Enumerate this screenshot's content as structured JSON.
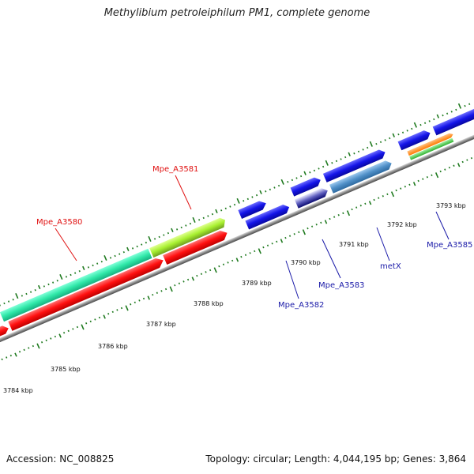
{
  "title": "Methylibium petroleiphilum PM1, complete genome",
  "accession": "Accession: NC_008825",
  "summary": "Topology: circular; Length: 4,044,195 bp; Genes: 3,864",
  "kbp_labels": [
    "3784 kbp",
    "3785 kbp",
    "3786 kbp",
    "3787 kbp",
    "3788 kbp",
    "3789 kbp",
    "3790 kbp",
    "3791 kbp",
    "3792 kbp",
    "3793 kbp"
  ],
  "genes": {
    "mpe_a3580": "Mpe_A3580",
    "mpe_a3581": "Mpe_A3581",
    "mpe_a3582": "Mpe_A3582",
    "mpe_a3583": "Mpe_A3583",
    "metx": "metX",
    "mpe_a3585": "Mpe_A3585"
  },
  "colors": {
    "backbone": "#8a8a8a",
    "tick": "#1f7a1f",
    "red_gene": "#ff1010",
    "teal_gene": "#2fe8a8",
    "lime_gene": "#b0ff30",
    "blue_gene": "#1414e8",
    "steel_gene": "#5090c8",
    "orange_gene": "#ff8a10",
    "green_gene": "#40c840"
  }
}
